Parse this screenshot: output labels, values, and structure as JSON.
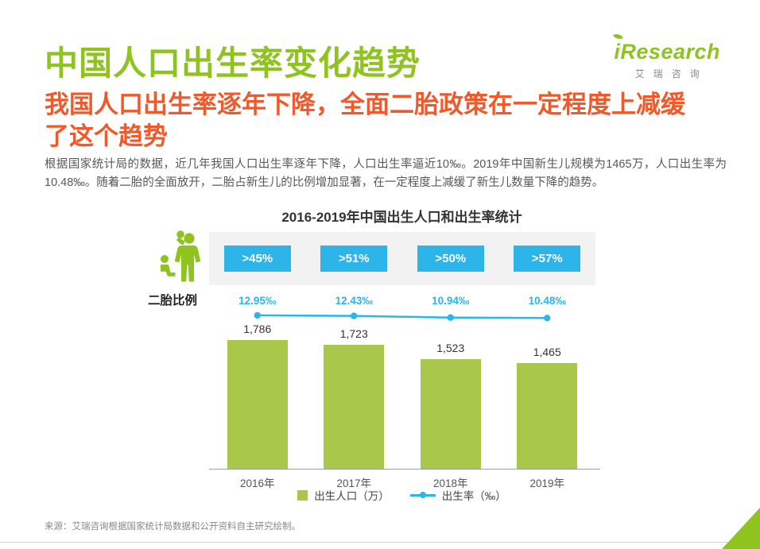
{
  "page": {
    "title": "中国人口出生率变化趋势",
    "headline": "我国人口出生率逐年下降，全面二胎政策在一定程度上减缓了这个趋势",
    "body": "根据国家统计局的数据，近几年我国人口出生率逐年下降，人口出生率逼近10‰。2019年中国新生儿规模为1465万，人口出生率为10.48‰。随着二胎的全面放开，二胎占新生儿的比例增加显著，在一定程度上减缓了新生儿数量下降的趋势。",
    "source": "来源：艾瑞咨询根据国家统计局数据和公开资料自主研究绘制。"
  },
  "logo": {
    "brand": "iResearch",
    "subtext": "艾瑞咨询"
  },
  "colors": {
    "brand_green": "#8fc31f",
    "bar_green": "#a9c84b",
    "cyan": "#2db4e8",
    "orange": "#f1592a",
    "band_gray": "#f2f2f3"
  },
  "chart_data": {
    "type": "bar",
    "title": "2016-2019年中国出生人口和出生率统计",
    "categories": [
      "2016年",
      "2017年",
      "2018年",
      "2019年"
    ],
    "series": [
      {
        "name": "出生人口（万）",
        "type": "bar",
        "values": [
          1786,
          1723,
          1523,
          1465
        ],
        "labels": [
          "1,786",
          "1,723",
          "1,523",
          "1,465"
        ],
        "color": "#a9c84b"
      },
      {
        "name": "出生率（‰）",
        "type": "line",
        "values": [
          12.95,
          12.43,
          10.94,
          10.48
        ],
        "labels": [
          "12.95‰",
          "12.43‰",
          "10.94‰",
          "10.48‰"
        ],
        "color": "#2db4e8"
      }
    ],
    "second_child_ratio": {
      "label": "二胎比例",
      "values": [
        ">45%",
        ">51%",
        ">50%",
        ">57%"
      ]
    },
    "xlabel": "",
    "ylabel": "",
    "ylim_bar": [
      0,
      1900
    ],
    "grid": false,
    "legend_position": "bottom"
  }
}
